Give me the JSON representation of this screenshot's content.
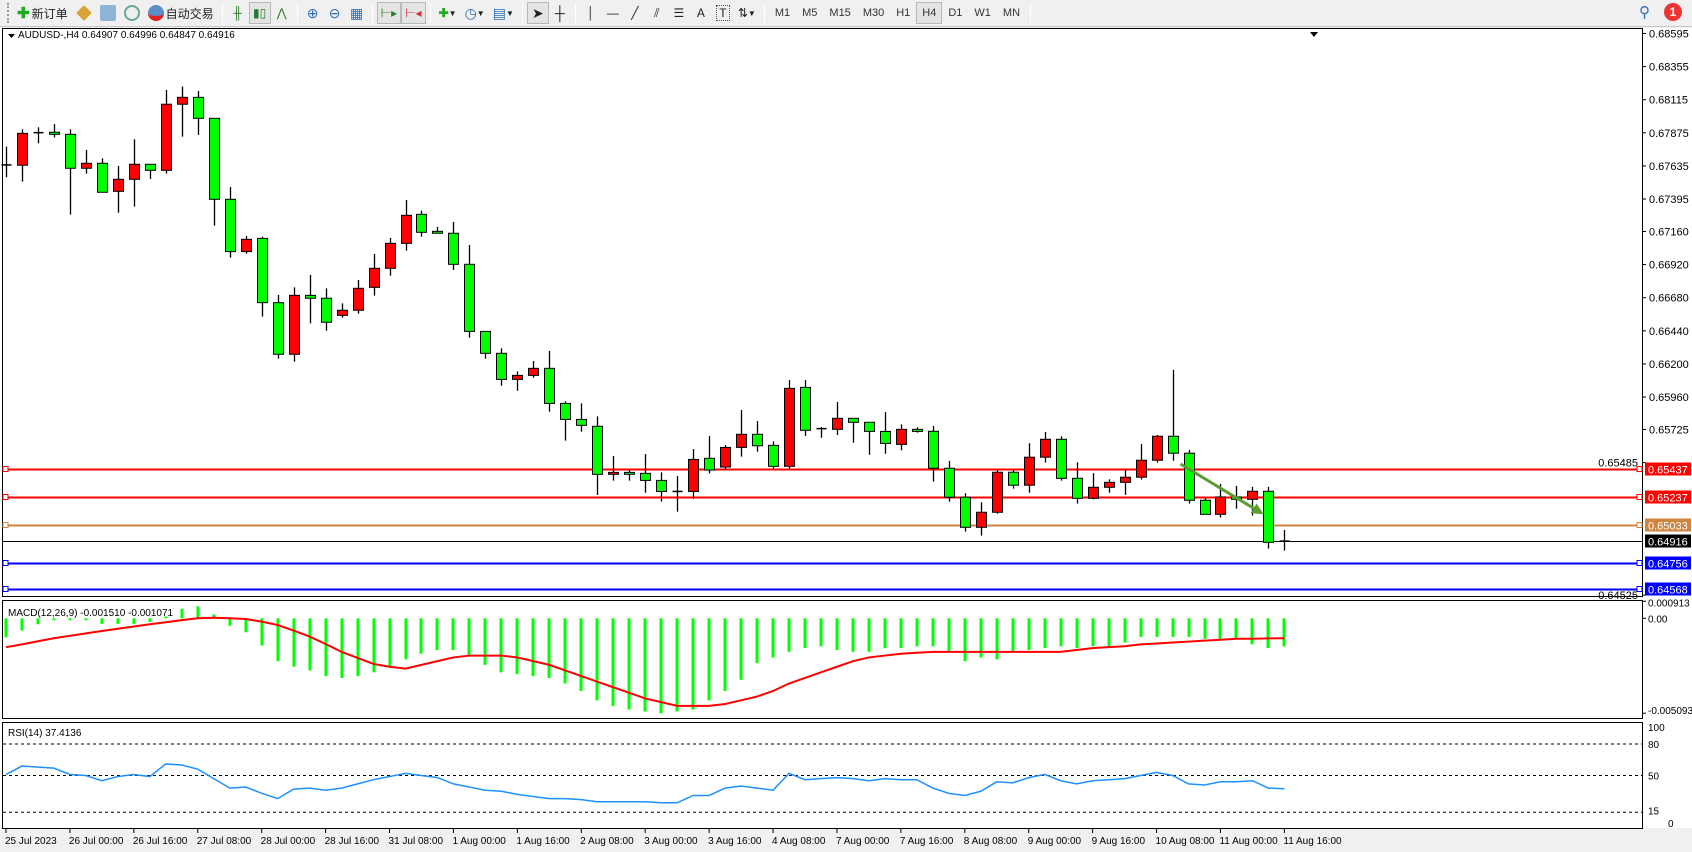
{
  "toolbar": {
    "new_order_label": "新订单",
    "auto_trading_label": "自动交易",
    "icons": [
      "new-order-icon",
      "metaeditor-icon",
      "terminal-icon",
      "signals-icon",
      "auto-trading-icon",
      "bar-chart-icon",
      "candlestick-icon",
      "line-chart-icon",
      "zoom-in-icon",
      "zoom-out-icon",
      "tile-windows-icon",
      "chart-shift-icon",
      "autoscroll-icon",
      "indicators-icon",
      "periods-icon",
      "templates-icon",
      "cursor-icon",
      "crosshair-icon",
      "vertical-line-icon",
      "horizontal-line-icon",
      "trendline-icon",
      "equidistant-channel-icon",
      "fibonacci-icon",
      "text-icon",
      "text-label-icon",
      "arrows-icon"
    ],
    "text_tool_label": "A",
    "timeframes": [
      "M1",
      "M5",
      "M15",
      "M30",
      "H1",
      "H4",
      "D1",
      "W1",
      "MN"
    ],
    "active_timeframe": "H4",
    "notification_count": "1"
  },
  "chart_data": {
    "type": "candlestick",
    "symbol_header": "AUDUSD-,H4  0.64907 0.64996 0.64847 0.64916",
    "colors": {
      "bull": "#FF0000",
      "bear": "#00FF00",
      "outline": "#000000"
    },
    "ylim": [
      0.64519,
      0.68634
    ],
    "y_ticks": [
      "0.68595",
      "0.68355",
      "0.68115",
      "0.67875",
      "0.67635",
      "0.67395",
      "0.67160",
      "0.66920",
      "0.66680",
      "0.66440",
      "0.66200",
      "0.65960",
      "0.65725",
      "0.65485",
      "0.64525"
    ],
    "x_labels": [
      "25 Jul 2023",
      "26 Jul 00:00",
      "26 Jul 16:00",
      "27 Jul 08:00",
      "28 Jul 00:00",
      "28 Jul 16:00",
      "31 Jul 08:00",
      "1 Aug 00:00",
      "1 Aug 16:00",
      "2 Aug 08:00",
      "3 Aug 00:00",
      "3 Aug 16:00",
      "4 Aug 08:00",
      "7 Aug 00:00",
      "7 Aug 16:00",
      "8 Aug 08:00",
      "9 Aug 00:00",
      "9 Aug 16:00",
      "10 Aug 08:00",
      "11 Aug 00:00",
      "11 Aug 16:00"
    ],
    "ohlc": [
      [
        0.67642,
        0.67775,
        0.67553,
        0.67642
      ],
      [
        0.6764,
        0.679,
        0.67521,
        0.67871
      ],
      [
        0.67876,
        0.67915,
        0.67799,
        0.67876
      ],
      [
        0.67879,
        0.67939,
        0.67842,
        0.67864
      ],
      [
        0.67864,
        0.679,
        0.67282,
        0.67618
      ],
      [
        0.67618,
        0.67751,
        0.67579,
        0.67654
      ],
      [
        0.67654,
        0.6769,
        0.67444,
        0.67444
      ],
      [
        0.67451,
        0.67635,
        0.67296,
        0.67538
      ],
      [
        0.67538,
        0.67828,
        0.6734,
        0.67647
      ],
      [
        0.67647,
        0.67647,
        0.6754,
        0.67603
      ],
      [
        0.67603,
        0.68186,
        0.67579,
        0.68082
      ],
      [
        0.68082,
        0.6821,
        0.67847,
        0.68132
      ],
      [
        0.68132,
        0.68178,
        0.67859,
        0.6798
      ],
      [
        0.6798,
        0.6798,
        0.67202,
        0.67393
      ],
      [
        0.67393,
        0.67482,
        0.6697,
        0.67014
      ],
      [
        0.67014,
        0.67127,
        0.66999,
        0.67103
      ],
      [
        0.6711,
        0.67122,
        0.66543,
        0.66644
      ],
      [
        0.66644,
        0.667,
        0.66238,
        0.6627
      ],
      [
        0.6627,
        0.66755,
        0.66216,
        0.66697
      ],
      [
        0.66697,
        0.66845,
        0.66494,
        0.66676
      ],
      [
        0.66676,
        0.66748,
        0.66441,
        0.66502
      ],
      [
        0.66552,
        0.66639,
        0.66535,
        0.66589
      ],
      [
        0.66589,
        0.66808,
        0.66564,
        0.66748
      ],
      [
        0.66755,
        0.66997,
        0.66695,
        0.66893
      ],
      [
        0.66893,
        0.67113,
        0.6684,
        0.67074
      ],
      [
        0.67074,
        0.67388,
        0.67021,
        0.67277
      ],
      [
        0.67284,
        0.67311,
        0.67122,
        0.67154
      ],
      [
        0.67161,
        0.67193,
        0.67147,
        0.67147
      ],
      [
        0.67147,
        0.67229,
        0.66881,
        0.66922
      ],
      [
        0.66922,
        0.67062,
        0.6639,
        0.66436
      ],
      [
        0.66436,
        0.66436,
        0.66238,
        0.66277
      ],
      [
        0.66277,
        0.66313,
        0.66042,
        0.66088
      ],
      [
        0.66088,
        0.66146,
        0.66006,
        0.66117
      ],
      [
        0.66117,
        0.66221,
        0.661,
        0.66168
      ],
      [
        0.66168,
        0.66294,
        0.65854,
        0.65914
      ],
      [
        0.65914,
        0.65929,
        0.65644,
        0.65798
      ],
      [
        0.65798,
        0.65914,
        0.65709,
        0.65755
      ],
      [
        0.65748,
        0.6582,
        0.6525,
        0.654
      ],
      [
        0.654,
        0.65533,
        0.65354,
        0.65414
      ],
      [
        0.65414,
        0.65431,
        0.65354,
        0.654
      ],
      [
        0.65407,
        0.65547,
        0.65267,
        0.65356
      ],
      [
        0.65356,
        0.65414,
        0.65202,
        0.65276
      ],
      [
        0.65276,
        0.65388,
        0.65129,
        0.65276
      ],
      [
        0.65276,
        0.65583,
        0.65223,
        0.65508
      ],
      [
        0.65516,
        0.65678,
        0.65407,
        0.65431
      ],
      [
        0.65453,
        0.65612,
        0.65431,
        0.65595
      ],
      [
        0.65595,
        0.65866,
        0.65528,
        0.6569
      ],
      [
        0.6569,
        0.65786,
        0.65564,
        0.65607
      ],
      [
        0.6561,
        0.65639,
        0.65443,
        0.65458
      ],
      [
        0.65458,
        0.66083,
        0.65443,
        0.66023
      ],
      [
        0.6603,
        0.66083,
        0.65678,
        0.65719
      ],
      [
        0.65731,
        0.65743,
        0.65665,
        0.65724
      ],
      [
        0.65726,
        0.65924,
        0.65685,
        0.65806
      ],
      [
        0.65806,
        0.65806,
        0.65629,
        0.65777
      ],
      [
        0.65777,
        0.65777,
        0.65542,
        0.65711
      ],
      [
        0.65711,
        0.65851,
        0.65549,
        0.65624
      ],
      [
        0.65617,
        0.65762,
        0.65574,
        0.65726
      ],
      [
        0.65726,
        0.6574,
        0.65702,
        0.65711
      ],
      [
        0.65712,
        0.65751,
        0.65347,
        0.65444
      ],
      [
        0.65444,
        0.65497,
        0.65202,
        0.65234
      ],
      [
        0.65234,
        0.65263,
        0.64985,
        0.65016
      ],
      [
        0.65016,
        0.65197,
        0.64956,
        0.65125
      ],
      [
        0.65125,
        0.65432,
        0.65115,
        0.65415
      ],
      [
        0.65415,
        0.65432,
        0.65296,
        0.65321
      ],
      [
        0.65321,
        0.65625,
        0.65267,
        0.65524
      ],
      [
        0.65524,
        0.65707,
        0.65485,
        0.65654
      ],
      [
        0.65654,
        0.65676,
        0.65354,
        0.65371
      ],
      [
        0.65371,
        0.65487,
        0.65188,
        0.65226
      ],
      [
        0.65226,
        0.65408,
        0.65219,
        0.65306
      ],
      [
        0.65306,
        0.65364,
        0.65267,
        0.65342
      ],
      [
        0.65342,
        0.65437,
        0.65251,
        0.65379
      ],
      [
        0.65379,
        0.6562,
        0.65362,
        0.65502
      ],
      [
        0.65502,
        0.65685,
        0.65485,
        0.65676
      ],
      [
        0.65676,
        0.66157,
        0.65499,
        0.65553
      ],
      [
        0.65553,
        0.65577,
        0.65188,
        0.65212
      ],
      [
        0.65212,
        0.65226,
        0.6511,
        0.6511
      ],
      [
        0.6511,
        0.6533,
        0.65086,
        0.65236
      ],
      [
        0.65236,
        0.65316,
        0.65151,
        0.65219
      ],
      [
        0.65219,
        0.65309,
        0.65101,
        0.65277
      ],
      [
        0.65277,
        0.65309,
        0.64862,
        0.64907
      ],
      [
        0.64907,
        0.64996,
        0.64847,
        0.64916
      ]
    ],
    "horizontal_lines": [
      {
        "price": "0.65437",
        "color": "#FF0000"
      },
      {
        "price": "0.65237",
        "color": "#FF0000"
      },
      {
        "price": "0.65033",
        "color": "#CD853F"
      },
      {
        "price": "0.64916",
        "color": "#000000",
        "label_bg": "#000000"
      },
      {
        "price": "0.64756",
        "color": "#0000FF"
      },
      {
        "price": "0.64568",
        "color": "#0000FF"
      }
    ],
    "arrow": {
      "color": "#5C9E31",
      "from": {
        "candle": 73.5,
        "price": 0.65475
      },
      "to": {
        "candle": 78.7,
        "price": 0.6511
      }
    },
    "macd": {
      "header": "MACD(12,26,9) -0.001510 -0.001071",
      "ticks": [
        "0.000913",
        "0.00",
        "-0.005093"
      ],
      "ylim": [
        -0.00538,
        0.00093
      ],
      "histogram_color": "#00FF00",
      "signal_color": "#FF0000",
      "histogram": [
        -0.00102,
        -0.00066,
        -0.00032,
        -0.0001,
        -0.0001,
        -0.0001,
        -0.0003,
        -0.0003,
        -0.0003,
        -0.0002,
        0.0001,
        0.0005,
        0.00064,
        0.0002,
        -0.0004,
        -0.00075,
        -0.00146,
        -0.0023,
        -0.0026,
        -0.0028,
        -0.0031,
        -0.0032,
        -0.0031,
        -0.0029,
        -0.0026,
        -0.0022,
        -0.0019,
        -0.0017,
        -0.0017,
        -0.002,
        -0.0025,
        -0.0029,
        -0.003,
        -0.0031,
        -0.0032,
        -0.0035,
        -0.0039,
        -0.0044,
        -0.0047,
        -0.0049,
        -0.005,
        -0.0051,
        -0.005,
        -0.0049,
        -0.0044,
        -0.0039,
        -0.0033,
        -0.0024,
        -0.0021,
        -0.0018,
        -0.0016,
        -0.0015,
        -0.0017,
        -0.0018,
        -0.0018,
        -0.0016,
        -0.0016,
        -0.0015,
        -0.0015,
        -0.0018,
        -0.0023,
        -0.0021,
        -0.0022,
        -0.0018,
        -0.0017,
        -0.0016,
        -0.0015,
        -0.0016,
        -0.0015,
        -0.0015,
        -0.0013,
        -0.001,
        -0.001,
        -0.001,
        -0.001,
        -0.0011,
        -0.0011,
        -0.0011,
        -0.0014,
        -0.0016,
        -0.00151
      ],
      "signal": [
        -0.00155,
        -0.0014,
        -0.00123,
        -0.00107,
        -0.00094,
        -0.00081,
        -0.00068,
        -0.00056,
        -0.00044,
        -0.00032,
        -0.00021,
        -0.0001,
        0,
        3e-05,
        0,
        -4e-05,
        -0.00018,
        -0.00036,
        -0.00066,
        -0.00098,
        -0.00138,
        -0.0018,
        -0.00213,
        -0.00245,
        -0.0026,
        -0.0027,
        -0.0025,
        -0.0023,
        -0.0021,
        -0.002,
        -0.002,
        -0.002,
        -0.0021,
        -0.0023,
        -0.0025,
        -0.0028,
        -0.0031,
        -0.0034,
        -0.0037,
        -0.004,
        -0.0043,
        -0.0045,
        -0.0047,
        -0.0047,
        -0.0047,
        -0.0046,
        -0.0044,
        -0.0042,
        -0.0039,
        -0.0035,
        -0.0032,
        -0.0029,
        -0.0026,
        -0.0023,
        -0.0021,
        -0.002,
        -0.0019,
        -0.00185,
        -0.0018,
        -0.0018,
        -0.0018,
        -0.0018,
        -0.0018,
        -0.0018,
        -0.0018,
        -0.0018,
        -0.0018,
        -0.0017,
        -0.0016,
        -0.00155,
        -0.0015,
        -0.0014,
        -0.00135,
        -0.0013,
        -0.00125,
        -0.0012,
        -0.00115,
        -0.0011,
        -0.0011,
        -0.00108,
        -0.00107
      ]
    },
    "rsi": {
      "header": "RSI(14) 37.4136",
      "ticks": [
        "100",
        "80",
        "50",
        "15",
        "0"
      ],
      "levels": [
        80,
        50,
        15
      ],
      "ylim": [
        0,
        100
      ],
      "color": "#1E90FF",
      "values": [
        51,
        59,
        58,
        57,
        51,
        50,
        45,
        49,
        51,
        49,
        61,
        60,
        56,
        47,
        38,
        39,
        33,
        28,
        37,
        38,
        36,
        38,
        42,
        46,
        49,
        52,
        50,
        48,
        42,
        39,
        36,
        35,
        32,
        30,
        28,
        28,
        27,
        25,
        25,
        25,
        25,
        24,
        24,
        31,
        31,
        38,
        40,
        38,
        36,
        52,
        46,
        47,
        48,
        47,
        45,
        47,
        46,
        46,
        38,
        33,
        31,
        35,
        44,
        43,
        48,
        51,
        45,
        42,
        45,
        46,
        47,
        50,
        53,
        50,
        42,
        41,
        44,
        44,
        45,
        38,
        37.41
      ]
    }
  }
}
